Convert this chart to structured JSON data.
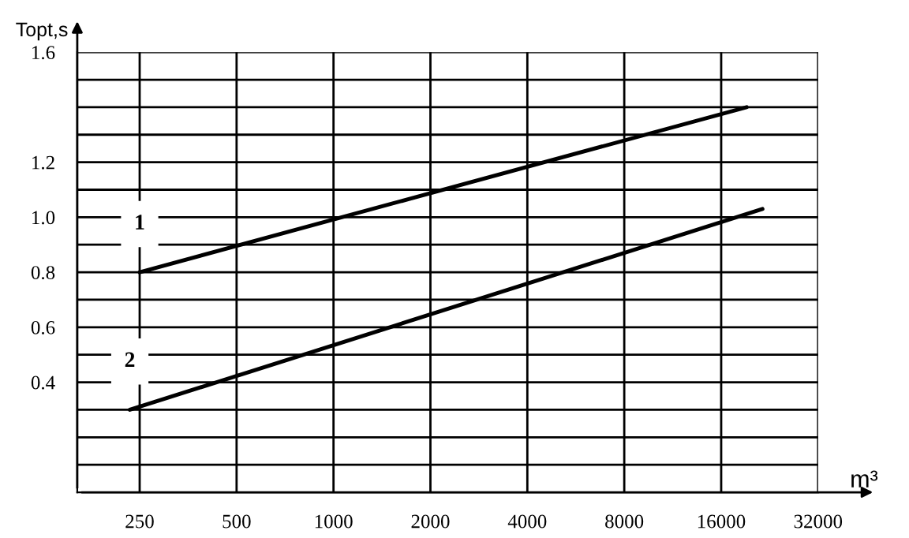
{
  "chart_data": {
    "type": "line",
    "xlabel": "m³",
    "ylabel": "Topt,s",
    "log": "x",
    "xlim": [
      160,
      32000
    ],
    "xticks": [
      250,
      500,
      1000,
      2000,
      4000,
      8000,
      16000,
      32000
    ],
    "ylim": [
      0,
      1.6
    ],
    "yticks": [
      {
        "value": 0.1,
        "label": null
      },
      {
        "value": 0.2,
        "label": null
      },
      {
        "value": 0.3,
        "label": null
      },
      0.4,
      {
        "value": 0.5,
        "label": null
      },
      0.6,
      {
        "value": 0.7,
        "label": null
      },
      0.8,
      {
        "value": 0.9,
        "label": null
      },
      {
        "value": 1.0,
        "label": "1.0"
      },
      {
        "value": 1.1,
        "label": null
      },
      1.2,
      {
        "value": 1.3,
        "label": null
      },
      {
        "value": 1.4,
        "label": null
      },
      {
        "value": 1.5,
        "label": null
      },
      1.6
    ],
    "grid": true,
    "legend": false,
    "marker": "none",
    "line_style": "solid",
    "series": [
      {
        "name": "1",
        "color": "#000000",
        "x": [
          250,
          19200
        ],
        "values": [
          0.8,
          1.4
        ]
      },
      {
        "name": "2",
        "color": "#000000",
        "x": [
          233,
          21500
        ],
        "values": [
          0.3,
          1.03
        ]
      }
    ]
  }
}
